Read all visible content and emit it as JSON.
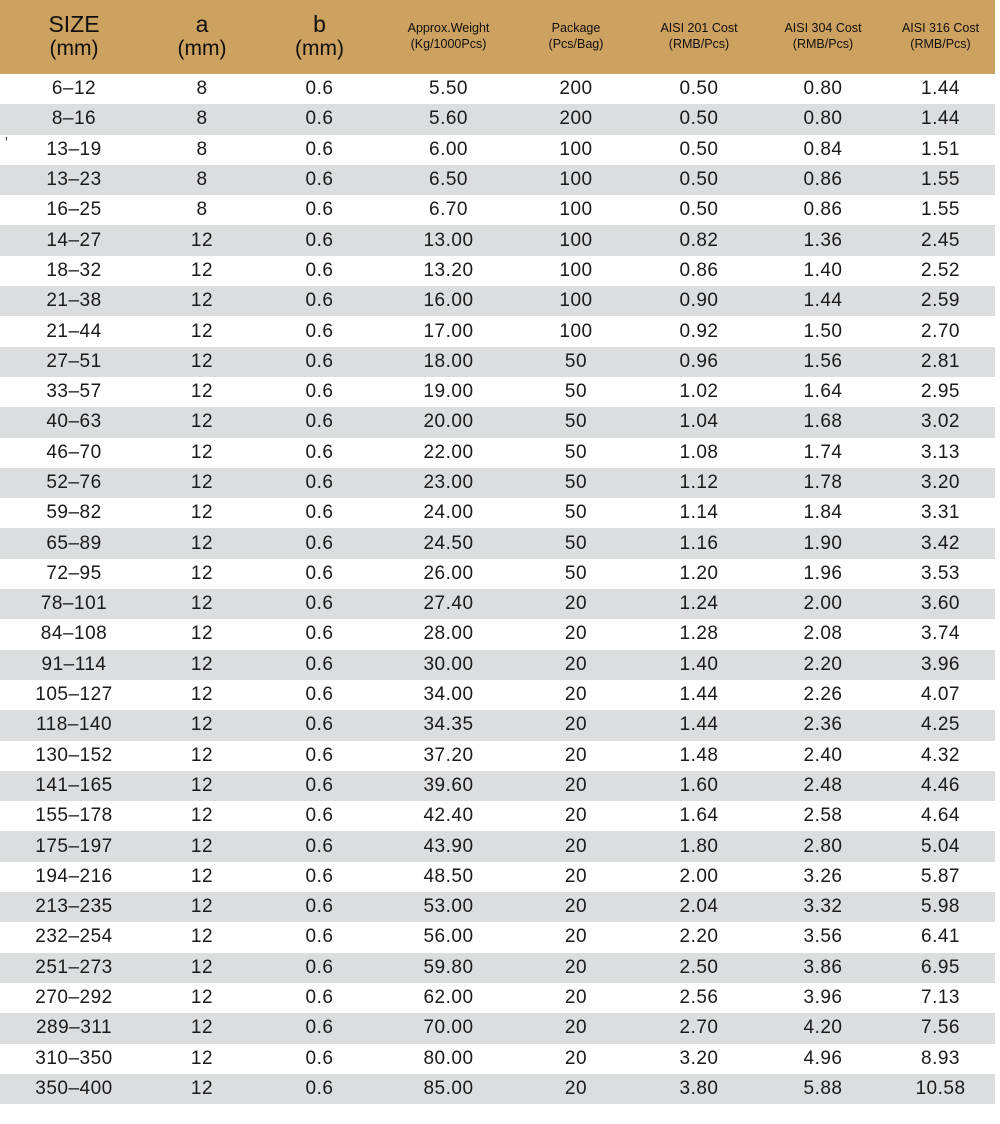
{
  "colors": {
    "header_bg": "#CDA15F",
    "row_stripe": "#DCDDDF",
    "row_plain": "#FFFFFF",
    "text": "#1a1a1a"
  },
  "artifact": {
    "mark": "'"
  },
  "table": {
    "columns": [
      {
        "id": "size",
        "line1": "SIZE",
        "line2": "(mm)",
        "style": "large"
      },
      {
        "id": "a",
        "line1": "a",
        "line2": "(mm)",
        "style": "large"
      },
      {
        "id": "b",
        "line1": "b",
        "line2": "(mm)",
        "style": "large"
      },
      {
        "id": "weight",
        "line1": "Approx.Weight",
        "line2": "(Kg/1000Pcs)",
        "style": "small"
      },
      {
        "id": "package",
        "line1": "Package",
        "line2": "(Pcs/Bag)",
        "style": "small"
      },
      {
        "id": "aisi201",
        "line1": "AISI 201 Cost",
        "line2": "(RMB/Pcs)",
        "style": "small"
      },
      {
        "id": "aisi304",
        "line1": "AISI 304 Cost",
        "line2": "(RMB/Pcs)",
        "style": "small"
      },
      {
        "id": "aisi316",
        "line1": "AISI 316 Cost",
        "line2": "(RMB/Pcs)",
        "style": "small"
      }
    ],
    "rows": [
      [
        "6–12",
        "8",
        "0.6",
        "5.50",
        "200",
        "0.50",
        "0.80",
        "1.44"
      ],
      [
        "8–16",
        "8",
        "0.6",
        "5.60",
        "200",
        "0.50",
        "0.80",
        "1.44"
      ],
      [
        "13–19",
        "8",
        "0.6",
        "6.00",
        "100",
        "0.50",
        "0.84",
        "1.51"
      ],
      [
        "13–23",
        "8",
        "0.6",
        "6.50",
        "100",
        "0.50",
        "0.86",
        "1.55"
      ],
      [
        "16–25",
        "8",
        "0.6",
        "6.70",
        "100",
        "0.50",
        "0.86",
        "1.55"
      ],
      [
        "14–27",
        "12",
        "0.6",
        "13.00",
        "100",
        "0.82",
        "1.36",
        "2.45"
      ],
      [
        "18–32",
        "12",
        "0.6",
        "13.20",
        "100",
        "0.86",
        "1.40",
        "2.52"
      ],
      [
        "21–38",
        "12",
        "0.6",
        "16.00",
        "100",
        "0.90",
        "1.44",
        "2.59"
      ],
      [
        "21–44",
        "12",
        "0.6",
        "17.00",
        "100",
        "0.92",
        "1.50",
        "2.70"
      ],
      [
        "27–51",
        "12",
        "0.6",
        "18.00",
        "50",
        "0.96",
        "1.56",
        "2.81"
      ],
      [
        "33–57",
        "12",
        "0.6",
        "19.00",
        "50",
        "1.02",
        "1.64",
        "2.95"
      ],
      [
        "40–63",
        "12",
        "0.6",
        "20.00",
        "50",
        "1.04",
        "1.68",
        "3.02"
      ],
      [
        "46–70",
        "12",
        "0.6",
        "22.00",
        "50",
        "1.08",
        "1.74",
        "3.13"
      ],
      [
        "52–76",
        "12",
        "0.6",
        "23.00",
        "50",
        "1.12",
        "1.78",
        "3.20"
      ],
      [
        "59–82",
        "12",
        "0.6",
        "24.00",
        "50",
        "1.14",
        "1.84",
        "3.31"
      ],
      [
        "65–89",
        "12",
        "0.6",
        "24.50",
        "50",
        "1.16",
        "1.90",
        "3.42"
      ],
      [
        "72–95",
        "12",
        "0.6",
        "26.00",
        "50",
        "1.20",
        "1.96",
        "3.53"
      ],
      [
        "78–101",
        "12",
        "0.6",
        "27.40",
        "20",
        "1.24",
        "2.00",
        "3.60"
      ],
      [
        "84–108",
        "12",
        "0.6",
        "28.00",
        "20",
        "1.28",
        "2.08",
        "3.74"
      ],
      [
        "91–114",
        "12",
        "0.6",
        "30.00",
        "20",
        "1.40",
        "2.20",
        "3.96"
      ],
      [
        "105–127",
        "12",
        "0.6",
        "34.00",
        "20",
        "1.44",
        "2.26",
        "4.07"
      ],
      [
        "118–140",
        "12",
        "0.6",
        "34.35",
        "20",
        "1.44",
        "2.36",
        "4.25"
      ],
      [
        "130–152",
        "12",
        "0.6",
        "37.20",
        "20",
        "1.48",
        "2.40",
        "4.32"
      ],
      [
        "141–165",
        "12",
        "0.6",
        "39.60",
        "20",
        "1.60",
        "2.48",
        "4.46"
      ],
      [
        "155–178",
        "12",
        "0.6",
        "42.40",
        "20",
        "1.64",
        "2.58",
        "4.64"
      ],
      [
        "175–197",
        "12",
        "0.6",
        "43.90",
        "20",
        "1.80",
        "2.80",
        "5.04"
      ],
      [
        "194–216",
        "12",
        "0.6",
        "48.50",
        "20",
        "2.00",
        "3.26",
        "5.87"
      ],
      [
        "213–235",
        "12",
        "0.6",
        "53.00",
        "20",
        "2.04",
        "3.32",
        "5.98"
      ],
      [
        "232–254",
        "12",
        "0.6",
        "56.00",
        "20",
        "2.20",
        "3.56",
        "6.41"
      ],
      [
        "251–273",
        "12",
        "0.6",
        "59.80",
        "20",
        "2.50",
        "3.86",
        "6.95"
      ],
      [
        "270–292",
        "12",
        "0.6",
        "62.00",
        "20",
        "2.56",
        "3.96",
        "7.13"
      ],
      [
        "289–311",
        "12",
        "0.6",
        "70.00",
        "20",
        "2.70",
        "4.20",
        "7.56"
      ],
      [
        "310–350",
        "12",
        "0.6",
        "80.00",
        "20",
        "3.20",
        "4.96",
        "8.93"
      ],
      [
        "350–400",
        "12",
        "0.6",
        "85.00",
        "20",
        "3.80",
        "5.88",
        "10.58"
      ]
    ]
  }
}
